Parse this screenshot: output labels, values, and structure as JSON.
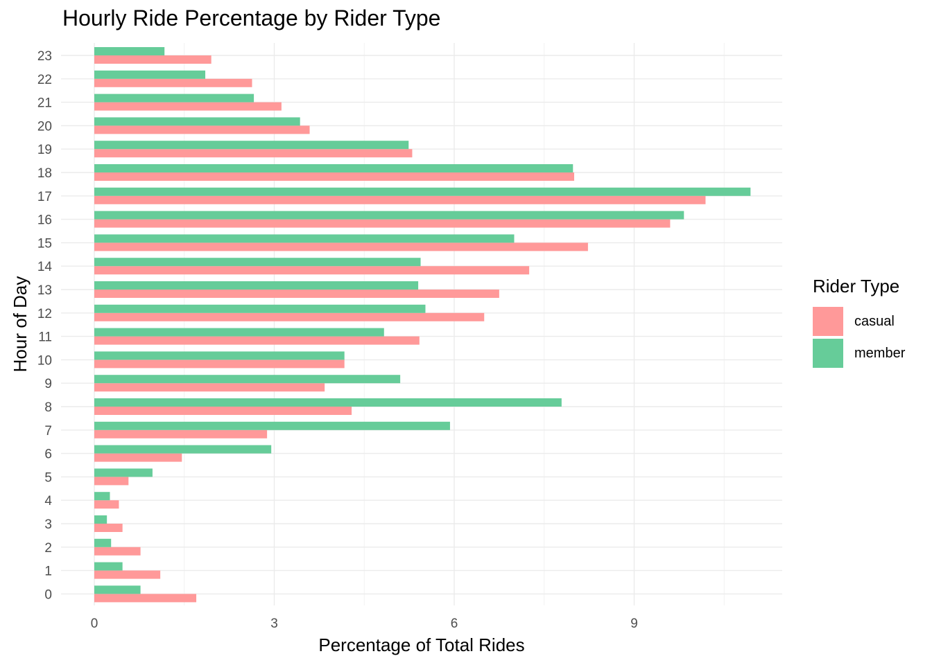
{
  "chart_data": {
    "type": "bar",
    "orientation": "horizontal",
    "title": "Hourly Ride Percentage by Rider Type",
    "xlabel": "Percentage of Total Rides",
    "ylabel": "Hour of Day",
    "categories": [
      "0",
      "1",
      "2",
      "3",
      "4",
      "5",
      "6",
      "7",
      "8",
      "9",
      "10",
      "11",
      "12",
      "13",
      "14",
      "15",
      "16",
      "17",
      "18",
      "19",
      "20",
      "21",
      "22",
      "23"
    ],
    "x_ticks": [
      "0",
      "3",
      "6",
      "9"
    ],
    "xlim": [
      -0.5,
      11.5
    ],
    "grid": true,
    "legend": {
      "title": "Rider Type",
      "placement": "right"
    },
    "series": [
      {
        "name": "casual",
        "color": "#F8766D",
        "values": [
          1.7,
          1.1,
          0.77,
          0.47,
          0.41,
          0.57,
          1.46,
          2.88,
          4.29,
          3.84,
          4.17,
          5.42,
          6.5,
          6.75,
          7.25,
          8.23,
          9.6,
          10.19,
          8.0,
          5.3,
          3.59,
          3.12,
          2.63,
          1.95
        ]
      },
      {
        "name": "member",
        "color": "#00BA38",
        "values": [
          0.77,
          0.47,
          0.28,
          0.21,
          0.26,
          0.97,
          2.95,
          5.93,
          7.79,
          5.1,
          4.17,
          4.83,
          5.52,
          5.4,
          5.44,
          7.0,
          9.83,
          10.94,
          7.98,
          5.24,
          3.43,
          2.66,
          1.85,
          1.17
        ]
      }
    ]
  }
}
